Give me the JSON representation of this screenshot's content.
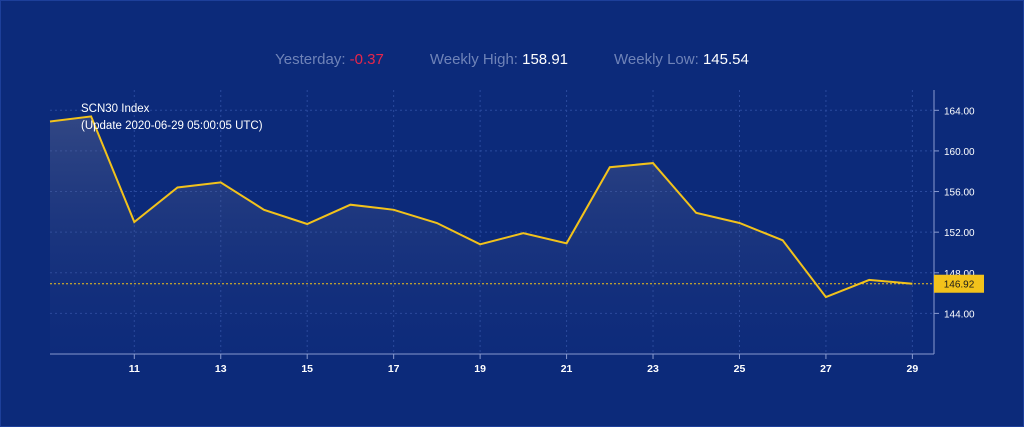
{
  "stats": {
    "yesterday_label": "Yesterday:",
    "yesterday_value": "-0.37",
    "weekly_high_label": "Weekly High:",
    "weekly_high_value": "158.91",
    "weekly_low_label": "Weekly Low:",
    "weekly_low_value": "145.54"
  },
  "colors": {
    "background": "#0c2a7a",
    "line": "#f2c21b",
    "negative": "#e8264a",
    "label_box": "#f2c21b"
  },
  "chart_data": {
    "type": "area",
    "title": "SCN30 Index",
    "subtitle": "(Update 2020-06-29 05:00:05 UTC)",
    "x_ticks": [
      "11",
      "13",
      "15",
      "17",
      "19",
      "21",
      "23",
      "25",
      "27",
      "29"
    ],
    "y_ticks": [
      "144.00",
      "148.00",
      "152.00",
      "156.00",
      "160.00",
      "164.00"
    ],
    "xlim": [
      9.05,
      29.5
    ],
    "ylim": [
      140.0,
      166.0
    ],
    "grid": true,
    "y_axis_position": "right",
    "series": [
      {
        "x": [
          9.05,
          10,
          11,
          12,
          13,
          14,
          15,
          16,
          17,
          18,
          19,
          20,
          21,
          22,
          23,
          24,
          25,
          26,
          27,
          28,
          29
        ],
        "values": [
          162.9,
          163.4,
          153.0,
          156.4,
          156.9,
          154.2,
          152.8,
          154.7,
          154.2,
          152.9,
          150.8,
          151.9,
          150.9,
          158.4,
          158.8,
          153.9,
          152.9,
          151.2,
          145.6,
          147.3,
          146.92
        ]
      }
    ],
    "last_value": 146.92,
    "last_value_label": "146.92"
  }
}
